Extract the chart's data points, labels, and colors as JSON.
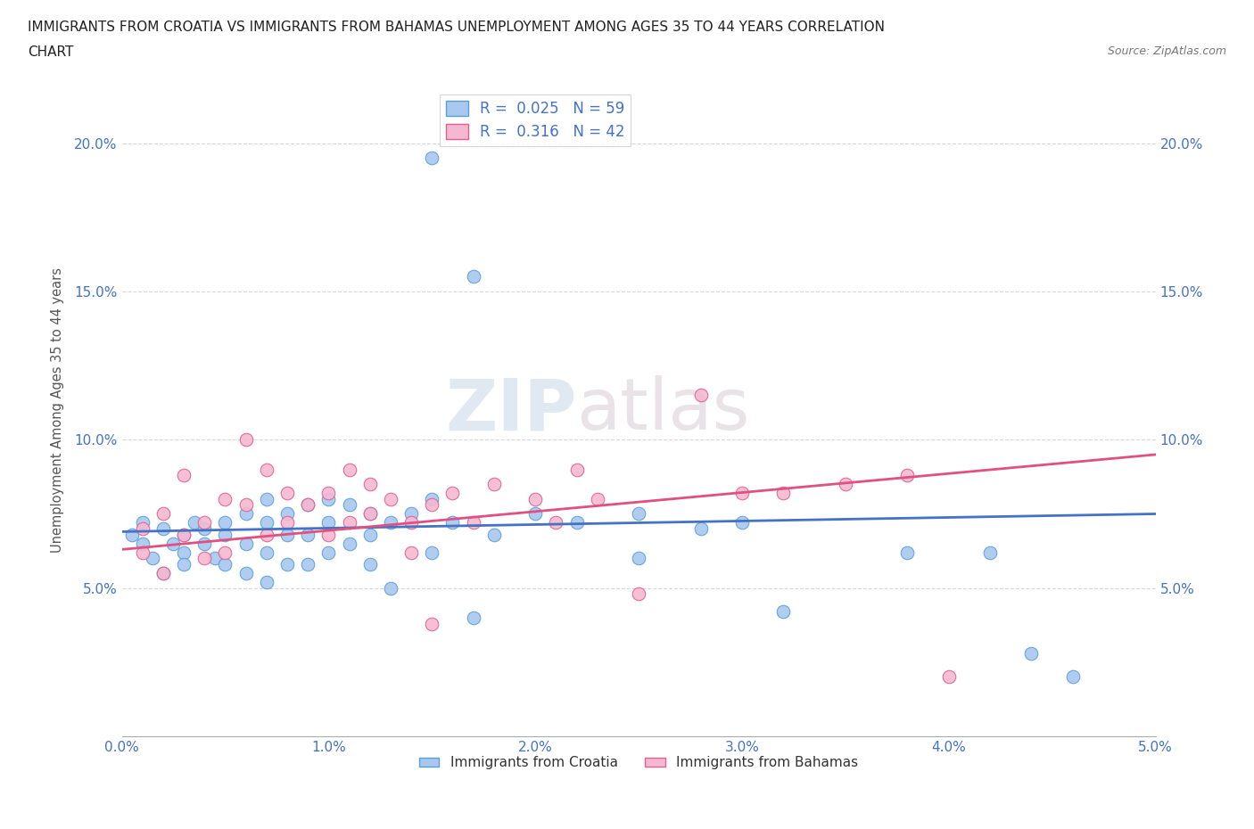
{
  "title_line1": "IMMIGRANTS FROM CROATIA VS IMMIGRANTS FROM BAHAMAS UNEMPLOYMENT AMONG AGES 35 TO 44 YEARS CORRELATION",
  "title_line2": "CHART",
  "source": "Source: ZipAtlas.com",
  "ylabel": "Unemployment Among Ages 35 to 44 years",
  "xmin": 0.0,
  "xmax": 0.05,
  "ymin": 0.0,
  "ymax": 0.22,
  "yticks": [
    0.05,
    0.1,
    0.15,
    0.2
  ],
  "ytick_labels": [
    "5.0%",
    "10.0%",
    "15.0%",
    "20.0%"
  ],
  "xticks": [
    0.0,
    0.01,
    0.02,
    0.03,
    0.04,
    0.05
  ],
  "xtick_labels": [
    "0.0%",
    "1.0%",
    "2.0%",
    "3.0%",
    "4.0%",
    "5.0%"
  ],
  "croatia_color": "#a8c8f0",
  "croatia_edge_color": "#5a9fd4",
  "bahamas_color": "#f5b8d0",
  "bahamas_edge_color": "#e06090",
  "croatia_line_color": "#4472c4",
  "bahamas_line_color": "#e05080",
  "R_croatia": 0.025,
  "N_croatia": 59,
  "R_bahamas": 0.316,
  "N_bahamas": 42,
  "watermark_ZIP": "ZIP",
  "watermark_atlas": "atlas",
  "background_color": "#ffffff",
  "croatia_x": [
    0.0005,
    0.001,
    0.001,
    0.0015,
    0.002,
    0.002,
    0.0025,
    0.003,
    0.003,
    0.003,
    0.0035,
    0.004,
    0.004,
    0.0045,
    0.005,
    0.005,
    0.005,
    0.006,
    0.006,
    0.006,
    0.007,
    0.007,
    0.007,
    0.007,
    0.008,
    0.008,
    0.008,
    0.009,
    0.009,
    0.009,
    0.01,
    0.01,
    0.01,
    0.011,
    0.011,
    0.012,
    0.012,
    0.012,
    0.013,
    0.013,
    0.014,
    0.015,
    0.015,
    0.016,
    0.017,
    0.015,
    0.017,
    0.018,
    0.02,
    0.022,
    0.025,
    0.025,
    0.028,
    0.03,
    0.032,
    0.038,
    0.042,
    0.044,
    0.046
  ],
  "croatia_y": [
    0.068,
    0.065,
    0.072,
    0.06,
    0.055,
    0.07,
    0.065,
    0.068,
    0.062,
    0.058,
    0.072,
    0.065,
    0.07,
    0.06,
    0.072,
    0.068,
    0.058,
    0.075,
    0.065,
    0.055,
    0.08,
    0.072,
    0.062,
    0.052,
    0.075,
    0.068,
    0.058,
    0.078,
    0.068,
    0.058,
    0.08,
    0.072,
    0.062,
    0.078,
    0.065,
    0.075,
    0.068,
    0.058,
    0.072,
    0.05,
    0.075,
    0.08,
    0.062,
    0.072,
    0.04,
    0.195,
    0.155,
    0.068,
    0.075,
    0.072,
    0.075,
    0.06,
    0.07,
    0.072,
    0.042,
    0.062,
    0.062,
    0.028,
    0.02
  ],
  "bahamas_x": [
    0.001,
    0.001,
    0.002,
    0.002,
    0.003,
    0.003,
    0.004,
    0.004,
    0.005,
    0.005,
    0.006,
    0.006,
    0.007,
    0.007,
    0.008,
    0.008,
    0.009,
    0.01,
    0.01,
    0.011,
    0.011,
    0.012,
    0.012,
    0.013,
    0.014,
    0.014,
    0.015,
    0.016,
    0.017,
    0.018,
    0.02,
    0.021,
    0.022,
    0.023,
    0.025,
    0.028,
    0.03,
    0.032,
    0.035,
    0.038,
    0.04,
    0.015
  ],
  "bahamas_y": [
    0.07,
    0.062,
    0.075,
    0.055,
    0.088,
    0.068,
    0.072,
    0.06,
    0.08,
    0.062,
    0.1,
    0.078,
    0.09,
    0.068,
    0.082,
    0.072,
    0.078,
    0.082,
    0.068,
    0.09,
    0.072,
    0.085,
    0.075,
    0.08,
    0.072,
    0.062,
    0.078,
    0.082,
    0.072,
    0.085,
    0.08,
    0.072,
    0.09,
    0.08,
    0.048,
    0.115,
    0.082,
    0.082,
    0.085,
    0.088,
    0.02,
    0.038
  ],
  "croatia_line_x0": 0.0,
  "croatia_line_x1": 0.05,
  "croatia_line_y0": 0.069,
  "croatia_line_y1": 0.075,
  "bahamas_line_x0": 0.0,
  "bahamas_line_x1": 0.05,
  "bahamas_line_y0": 0.063,
  "bahamas_line_y1": 0.095
}
